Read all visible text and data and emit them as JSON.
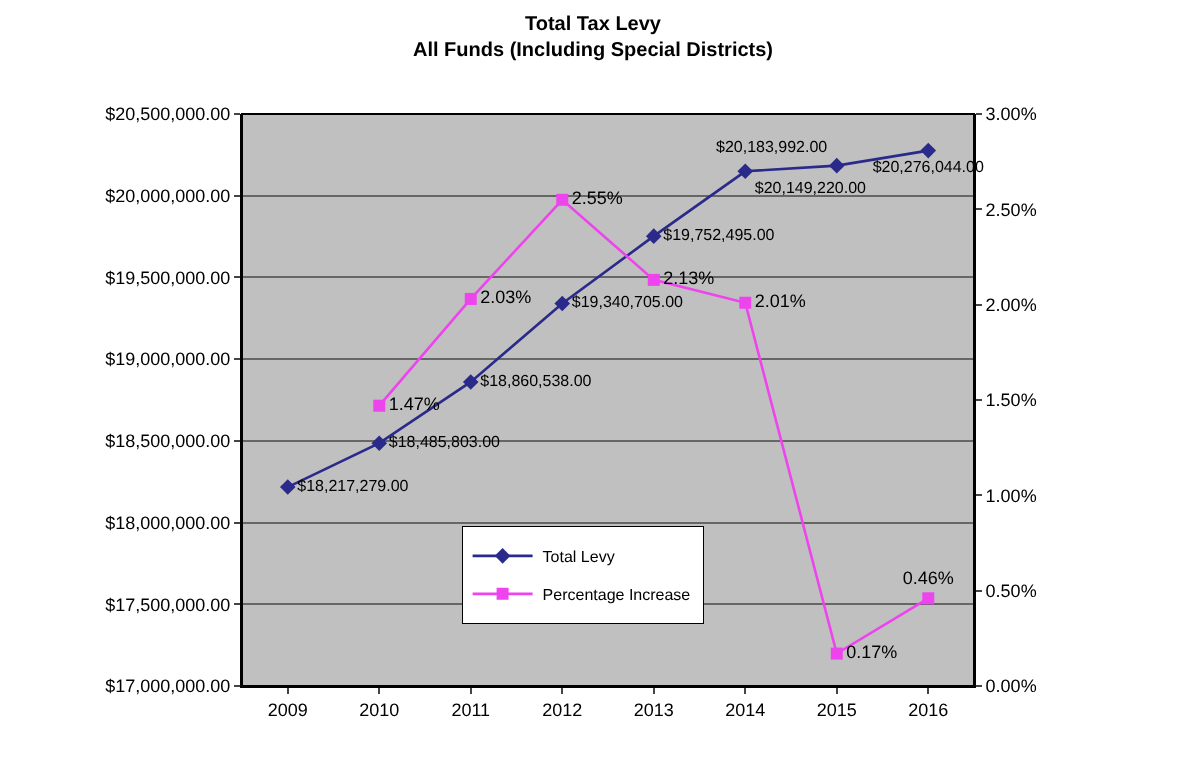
{
  "chart_data": {
    "type": "line",
    "title": "Total Tax Levy",
    "subtitle": "All Funds (Including Special Districts)",
    "categories": [
      "2009",
      "2010",
      "2011",
      "2012",
      "2013",
      "2014",
      "2015",
      "2016"
    ],
    "series": [
      {
        "name": "Total Levy",
        "color": "#2a2a8a",
        "marker": "diamond",
        "values": [
          18217279,
          18485803,
          18860538,
          19340705,
          19752495,
          20149220,
          20183992,
          20276044
        ],
        "value_labels": [
          "$18,217,279.00",
          "$18,485,803.00",
          "$18,860,538.00",
          "$19,340,705.00",
          "$19,752,495.00",
          "$20,149,220.00",
          "$20,183,992.00",
          "$20,276,044.00"
        ]
      },
      {
        "name": "Percentage Increase",
        "color": "#ee44ee",
        "marker": "square",
        "axis": "y2",
        "values": [
          null,
          1.47,
          2.03,
          2.55,
          2.13,
          2.01,
          0.17,
          0.46
        ],
        "value_labels": [
          null,
          "1.47%",
          "2.03%",
          "2.55%",
          "2.13%",
          "2.01%",
          "0.17%",
          "0.46%"
        ]
      }
    ],
    "ylim": [
      17000000,
      20500000
    ],
    "yticks": [
      {
        "value": 17000000,
        "label": "$17,000,000.00"
      },
      {
        "value": 17500000,
        "label": "$17,500,000.00"
      },
      {
        "value": 18000000,
        "label": "$18,000,000.00"
      },
      {
        "value": 18500000,
        "label": "$18,500,000.00"
      },
      {
        "value": 19000000,
        "label": "$19,000,000.00"
      },
      {
        "value": 19500000,
        "label": "$19,500,000.00"
      },
      {
        "value": 20000000,
        "label": "$20,000,000.00"
      },
      {
        "value": 20500000,
        "label": "$20,500,000.00"
      }
    ],
    "y2lim": [
      0,
      3
    ],
    "y2ticks": [
      {
        "value": 0,
        "label": "0.00%"
      },
      {
        "value": 0.5,
        "label": "0.50%"
      },
      {
        "value": 1,
        "label": "1.00%"
      },
      {
        "value": 1.5,
        "label": "1.50%"
      },
      {
        "value": 2,
        "label": "2.00%"
      },
      {
        "value": 2.5,
        "label": "2.50%"
      },
      {
        "value": 3,
        "label": "3.00%"
      }
    ],
    "grid": "y",
    "legend": "bottom",
    "line_style": "solid"
  }
}
